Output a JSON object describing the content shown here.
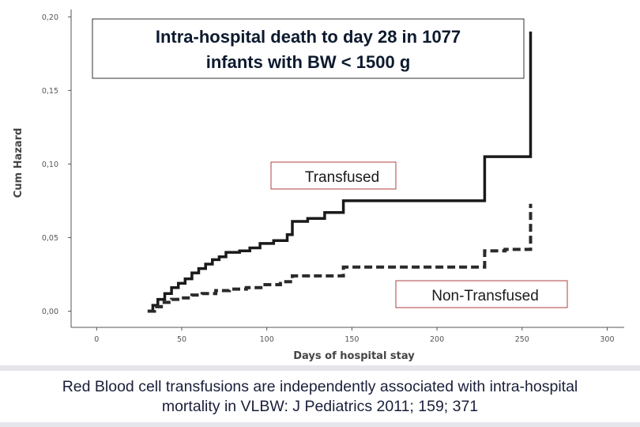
{
  "chart_data": {
    "type": "line",
    "title": "Intra-hospital death to day 28 in 1077 infants with BW < 1500 g",
    "title_lines": [
      "Intra-hospital death to day 28 in 1077",
      "infants with BW < 1500 g"
    ],
    "xlabel": "Days of hospital stay",
    "ylabel": "Cum Hazard",
    "xlim": [
      -15,
      310
    ],
    "ylim": [
      -0.011,
      0.205
    ],
    "x_ticks": [
      0,
      50,
      100,
      150,
      200,
      250,
      300
    ],
    "x_tick_labels": [
      "0",
      "50",
      "100",
      "150",
      "200",
      "250",
      "300"
    ],
    "y_ticks": [
      0,
      0.05,
      0.1,
      0.15,
      0.2
    ],
    "y_tick_labels": [
      "0,00",
      "0,05",
      "0,10",
      "0,15",
      "0,20"
    ],
    "series": [
      {
        "name": "Transfused",
        "style": "solid",
        "color": "#1a1a1a",
        "x": [
          30,
          33,
          36,
          40,
          44,
          48,
          52,
          56,
          60,
          64,
          68,
          72,
          76,
          84,
          90,
          96,
          104,
          112,
          115,
          124,
          134,
          145,
          228,
          255,
          255
        ],
        "y": [
          0.0,
          0.004,
          0.008,
          0.012,
          0.016,
          0.019,
          0.022,
          0.026,
          0.029,
          0.032,
          0.035,
          0.037,
          0.04,
          0.041,
          0.043,
          0.046,
          0.048,
          0.052,
          0.061,
          0.063,
          0.067,
          0.075,
          0.105,
          0.105,
          0.19
        ]
      },
      {
        "name": "Non-Transfused",
        "style": "dashed",
        "color": "#2a2a2a",
        "x": [
          30,
          34,
          38,
          44,
          50,
          56,
          62,
          70,
          78,
          88,
          98,
          108,
          115,
          125,
          145,
          228,
          240,
          255,
          255
        ],
        "y": [
          0.0,
          0.003,
          0.006,
          0.008,
          0.009,
          0.011,
          0.012,
          0.014,
          0.015,
          0.016,
          0.018,
          0.02,
          0.024,
          0.024,
          0.03,
          0.041,
          0.042,
          0.042,
          0.073
        ]
      }
    ],
    "annotations": [
      {
        "text": "Transfused",
        "series": "Transfused"
      },
      {
        "text": "Non-Transfused",
        "series": "Non-Transfused"
      }
    ]
  },
  "caption": {
    "text": "Red Blood cell transfusions are independently associated with intra-hospital mortality in VLBW: J Pediatrics 2011; 159; 371"
  },
  "colors": {
    "axis": "#555555",
    "title_box_border": "#333333",
    "label_box_border": "#b04040",
    "band": "#e4e6ec"
  }
}
